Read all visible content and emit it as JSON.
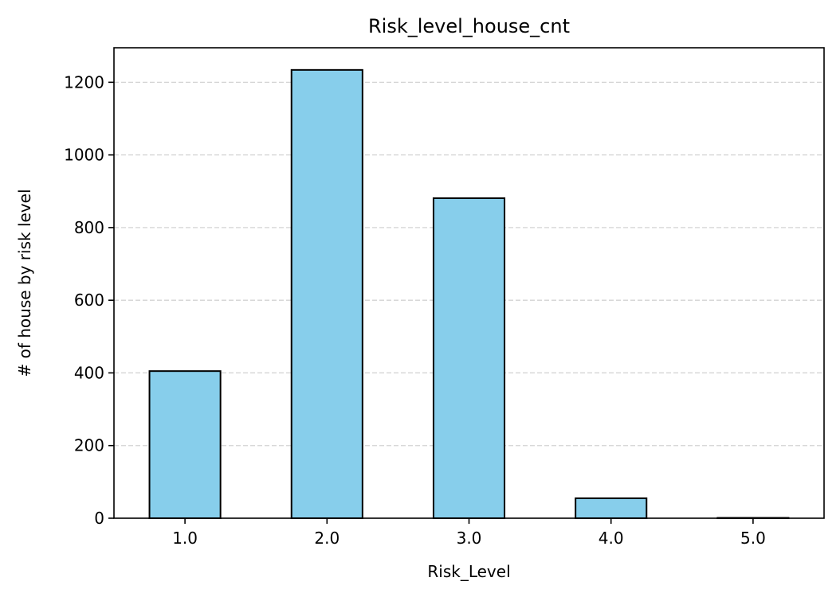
{
  "chart_data": {
    "type": "bar",
    "title": "Risk_level_house_cnt",
    "xlabel": "Risk_Level",
    "ylabel": "# of house by risk level",
    "categories": [
      "1.0",
      "2.0",
      "3.0",
      "4.0",
      "5.0"
    ],
    "values": [
      405,
      1234,
      881,
      55,
      1
    ],
    "ylim": [
      0,
      1295
    ],
    "yticks": [
      0,
      200,
      400,
      600,
      800,
      1000,
      1200
    ],
    "ytick_labels": [
      "0",
      "200",
      "400",
      "600",
      "800",
      "1000",
      "1200"
    ],
    "grid": "y-dashed",
    "legend": "none",
    "colors": {
      "bar_fill": "#87CEEB",
      "bar_edge": "#000000",
      "grid": "#d3d3d3",
      "axis": "#000000"
    }
  }
}
